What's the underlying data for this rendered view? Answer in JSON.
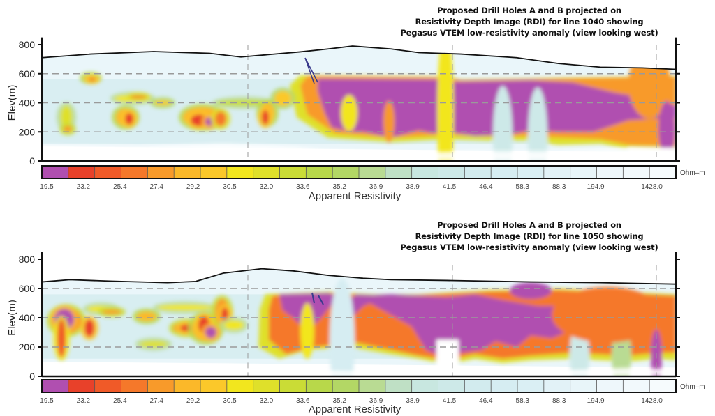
{
  "chart_data": [
    {
      "type": "heatmap",
      "title_lines": [
        "Proposed Drill Holes A and B projected on",
        "Resistivity Depth Image (RDI) for line 1040 showing",
        "Pegasus VTEM low-resistivity anomaly (view looking west)"
      ],
      "ylabel": "Elev(m)",
      "yticks": [
        "0",
        "200",
        "400",
        "600",
        "800"
      ],
      "ylim": [
        0,
        850
      ],
      "grid": "dashed horizontal at 200, 400, 600",
      "colorbar": {
        "label": "Apparent Resistivity",
        "unit": "Ohm–m",
        "tick_labels": [
          "19.5",
          "23.2",
          "25.4",
          "27.4",
          "29.2",
          "30.5",
          "32.0",
          "33.6",
          "35.2",
          "36.9",
          "38.9",
          "41.5",
          "46.4",
          "58.3",
          "88.3",
          "194.9",
          "1428.0"
        ]
      },
      "annotation": "drill hole arrows A and B"
    },
    {
      "type": "heatmap",
      "title_lines": [
        "Proposed Drill Holes A and B projected on",
        "Resistivity Depth Image (RDI) for line 1050 showing",
        "Pegasus VTEM low-resistivity anomaly (view looking west)"
      ],
      "ylabel": "Elev(m)",
      "yticks": [
        "0",
        "200",
        "400",
        "600",
        "800"
      ],
      "ylim": [
        0,
        850
      ],
      "grid": "dashed horizontal at 200, 400, 600",
      "colorbar": {
        "label": "Apparent Resistivity",
        "unit": "Ohm–m",
        "tick_labels": [
          "19.5",
          "23.2",
          "25.4",
          "27.4",
          "29.2",
          "30.5",
          "32.0",
          "33.6",
          "35.2",
          "36.9",
          "38.9",
          "41.5",
          "46.4",
          "58.3",
          "88.3",
          "194.9",
          "1428.0"
        ]
      },
      "annotation": "drill hole marks A and B"
    }
  ],
  "colors": {
    "palette": [
      "#b04fb0",
      "#e8412a",
      "#f05a28",
      "#f5782a",
      "#f89a2a",
      "#fbb829",
      "#fbc82a",
      "#f2e61e",
      "#dfe02a",
      "#cadc36",
      "#b8d84a",
      "#b3d765",
      "#b9db93",
      "#bfe0c5",
      "#c8e7e0",
      "#cde9e8",
      "#d2ebee",
      "#d6edf2",
      "#daeff4",
      "#e2f2f7",
      "#e8f5f9",
      "#eef7fb",
      "#f2f9fc",
      "#f6fbfd"
    ],
    "anomaly": "#b04fb0",
    "axis": "#111111",
    "grid": "#9a9a9a",
    "arrow": "#3a3a8c"
  }
}
